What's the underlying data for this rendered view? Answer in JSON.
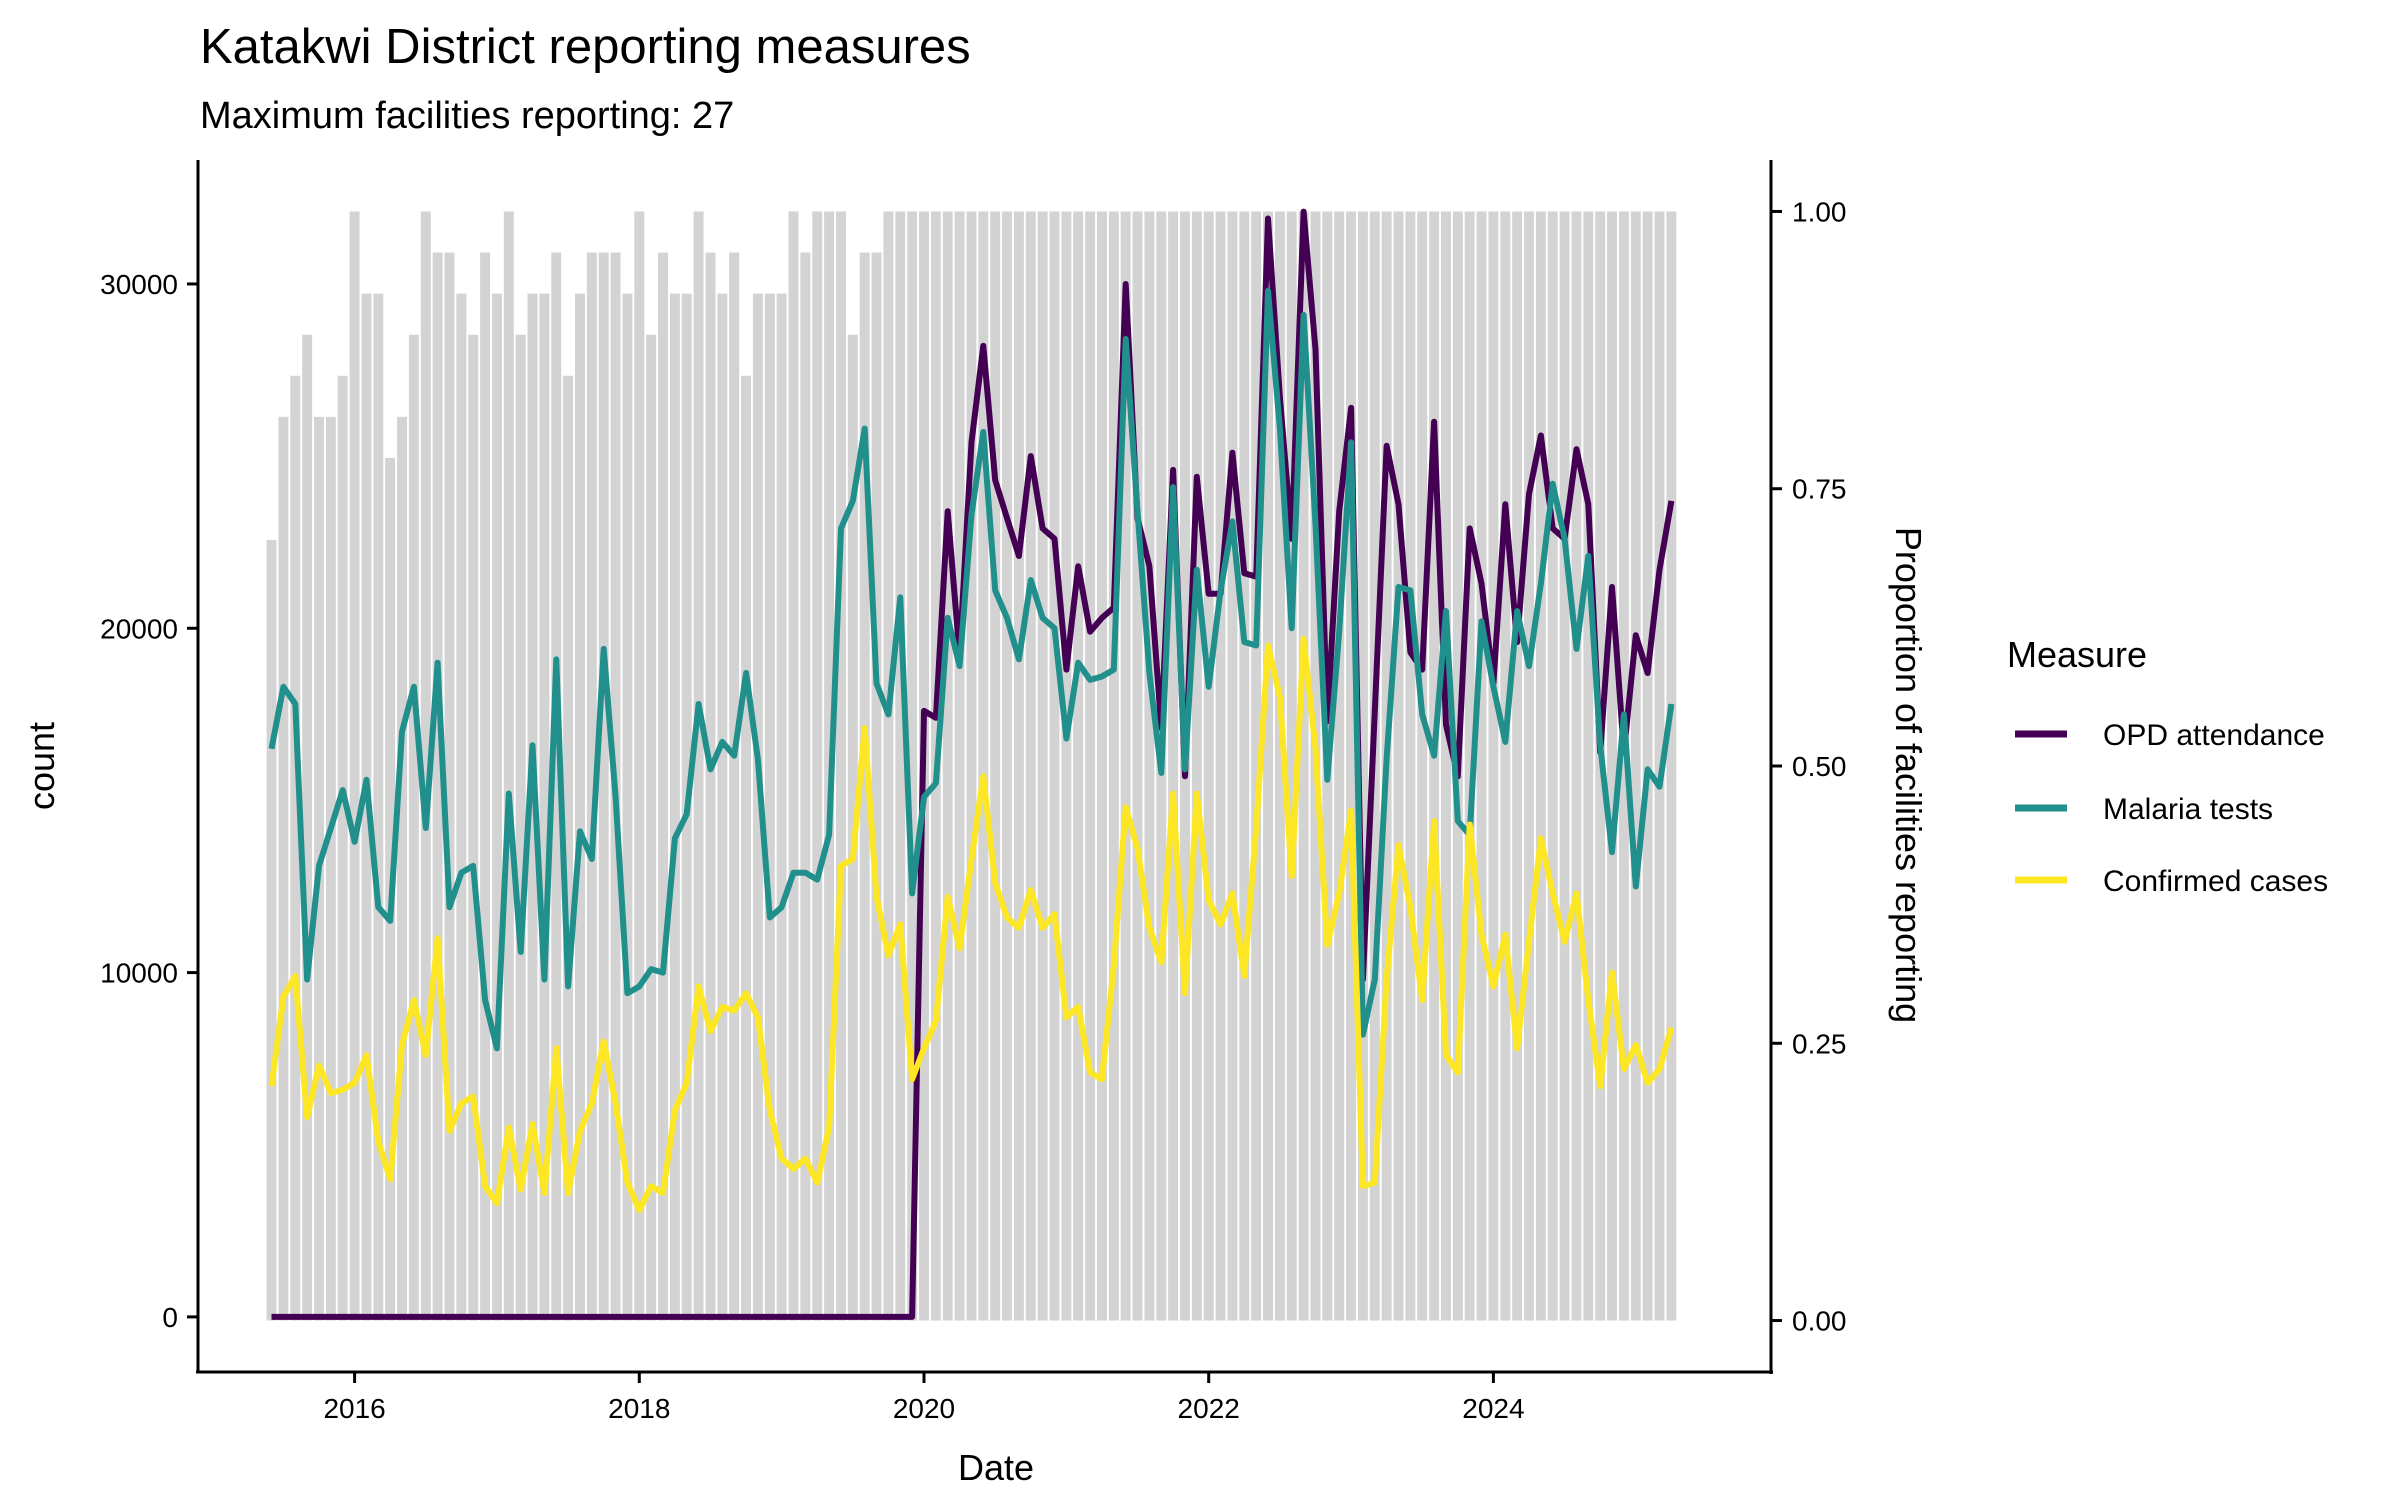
{
  "chart_data": {
    "type": "line",
    "title": "Katakwi District reporting measures",
    "subtitle": "Maximum facilities reporting: 27",
    "xlabel": "Date",
    "ylabel": "count",
    "y2label": "Proportion of facilities reporting",
    "xlim": [
      2014.9,
      2025.95
    ],
    "ylim": [
      -1600,
      33600
    ],
    "y2lim": [
      -0.0464,
      1.0464
    ],
    "x_ticks": [
      2016,
      2018,
      2020,
      2022,
      2024
    ],
    "x_tick_labels": [
      "2016",
      "2018",
      "2020",
      "2022",
      "2024"
    ],
    "y_ticks": [
      0,
      10000,
      20000,
      30000
    ],
    "y_tick_labels": [
      "0",
      "10000",
      "20000",
      "30000"
    ],
    "y2_ticks": [
      0,
      0.25,
      0.5,
      0.75,
      1.0
    ],
    "y2_tick_labels": [
      "0.00",
      "0.25",
      "0.50",
      "0.75",
      "1.00"
    ],
    "grid": false,
    "start_month": "2015-06",
    "n_months": 119,
    "legend": {
      "title": "Measure",
      "position": "right",
      "entries": [
        "OPD attendance",
        "Malaria tests",
        "Confirmed cases"
      ]
    },
    "bars": {
      "name": "Proportion of facilities reporting",
      "color": "#d3d3d3",
      "max_facilities": 27,
      "facilities": [
        19,
        22,
        23,
        24,
        22,
        22,
        23,
        27,
        25,
        25,
        21,
        22,
        24,
        27,
        26,
        26,
        25,
        24,
        26,
        25,
        27,
        24,
        25,
        25,
        26,
        23,
        25,
        26,
        26,
        26,
        25,
        27,
        24,
        26,
        25,
        25,
        27,
        26,
        25,
        26,
        23,
        25,
        25,
        25,
        27,
        26,
        27,
        27,
        27,
        24,
        26,
        26,
        27,
        27,
        27,
        27,
        27,
        27,
        27,
        27,
        27,
        27,
        27,
        27,
        27,
        27,
        27,
        27,
        27,
        27,
        27,
        27,
        27,
        27,
        27,
        27,
        27,
        27,
        27,
        27,
        27,
        27,
        27,
        27,
        27,
        27,
        27,
        27,
        27,
        27,
        27,
        27,
        27,
        27,
        27,
        27,
        27,
        27,
        27,
        27,
        27,
        27,
        27,
        27,
        27,
        27,
        27,
        27,
        27,
        27,
        27,
        27,
        27,
        27,
        27,
        27,
        27,
        27,
        27
      ]
    },
    "series": [
      {
        "name": "OPD attendance",
        "color": "#440154",
        "values": [
          0,
          0,
          0,
          0,
          0,
          0,
          0,
          0,
          0,
          0,
          0,
          0,
          0,
          0,
          0,
          0,
          0,
          0,
          0,
          0,
          0,
          0,
          0,
          0,
          0,
          0,
          0,
          0,
          0,
          0,
          0,
          0,
          0,
          0,
          0,
          0,
          0,
          0,
          0,
          0,
          0,
          0,
          0,
          0,
          0,
          0,
          0,
          0,
          0,
          0,
          0,
          0,
          0,
          0,
          0,
          17600,
          17400,
          23400,
          19200,
          25400,
          28200,
          24300,
          23200,
          22100,
          25000,
          22900,
          22600,
          18800,
          21800,
          19900,
          20300,
          20600,
          30000,
          23200,
          21800,
          17100,
          24600,
          15700,
          24400,
          21000,
          21000,
          25100,
          21600,
          21500,
          31900,
          26700,
          22600,
          32100,
          28100,
          17300,
          23400,
          26400,
          9800,
          17600,
          25300,
          23600,
          19300,
          18800,
          26000,
          17200,
          15700,
          22900,
          21300,
          18400,
          23600,
          19600,
          23900,
          25600,
          22900,
          22600,
          25200,
          23600,
          16400,
          21200,
          16400,
          19800,
          18700,
          21700,
          23700
        ]
      },
      {
        "name": "Malaria tests",
        "color": "#21908c",
        "values": [
          16500,
          18300,
          17800,
          9800,
          13100,
          14200,
          15300,
          13800,
          15600,
          11900,
          11500,
          17000,
          18300,
          14200,
          19000,
          11900,
          12900,
          13100,
          9200,
          7800,
          15200,
          10600,
          16600,
          9800,
          19100,
          9600,
          14100,
          13300,
          19400,
          15100,
          9400,
          9600,
          10100,
          10000,
          13900,
          14600,
          17800,
          15900,
          16700,
          16300,
          18700,
          16200,
          11600,
          11900,
          12900,
          12900,
          12700,
          14000,
          22900,
          23700,
          25800,
          18400,
          17500,
          20900,
          12300,
          15100,
          15500,
          20300,
          18900,
          23300,
          25700,
          21100,
          20300,
          19100,
          21400,
          20300,
          20000,
          16800,
          19000,
          18500,
          18600,
          18800,
          28400,
          23400,
          18700,
          15800,
          24100,
          15900,
          21700,
          18300,
          21100,
          23100,
          19600,
          19500,
          29800,
          25800,
          20000,
          29100,
          23000,
          15600,
          19900,
          25400,
          8200,
          9800,
          16200,
          21200,
          21100,
          17500,
          16300,
          20500,
          14400,
          14000,
          20200,
          18300,
          16700,
          20500,
          18900,
          21300,
          24200,
          22600,
          19400,
          22100,
          16600,
          13500,
          17500,
          12500,
          15900,
          15400,
          17800
        ]
      },
      {
        "name": "Confirmed cases",
        "color": "#fde725",
        "values": [
          6700,
          9300,
          9900,
          5800,
          7300,
          6500,
          6600,
          6800,
          7600,
          5100,
          4000,
          7900,
          9200,
          7600,
          11000,
          5400,
          6200,
          6400,
          3800,
          3300,
          5500,
          3700,
          5600,
          3600,
          7800,
          3600,
          5400,
          6200,
          8000,
          6200,
          3900,
          3100,
          3800,
          3600,
          6000,
          6800,
          9600,
          8300,
          9000,
          8900,
          9400,
          8700,
          6000,
          4600,
          4300,
          4600,
          3900,
          5500,
          13100,
          13300,
          17100,
          12200,
          10500,
          11400,
          6900,
          7800,
          8600,
          12200,
          10700,
          13300,
          15700,
          12600,
          11600,
          11300,
          12400,
          11300,
          11700,
          8700,
          9000,
          7100,
          6900,
          10200,
          14800,
          13600,
          11300,
          10300,
          15200,
          9400,
          15200,
          12100,
          11400,
          12300,
          9900,
          14200,
          19500,
          18000,
          12800,
          19700,
          16500,
          10800,
          12300,
          14700,
          3800,
          3900,
          9800,
          13700,
          11900,
          9200,
          14400,
          7600,
          7100,
          14300,
          11100,
          9600,
          11100,
          7800,
          10900,
          13900,
          12300,
          10900,
          12300,
          9200,
          6700,
          10000,
          7200,
          7900,
          6800,
          7200,
          8400
        ]
      }
    ]
  }
}
